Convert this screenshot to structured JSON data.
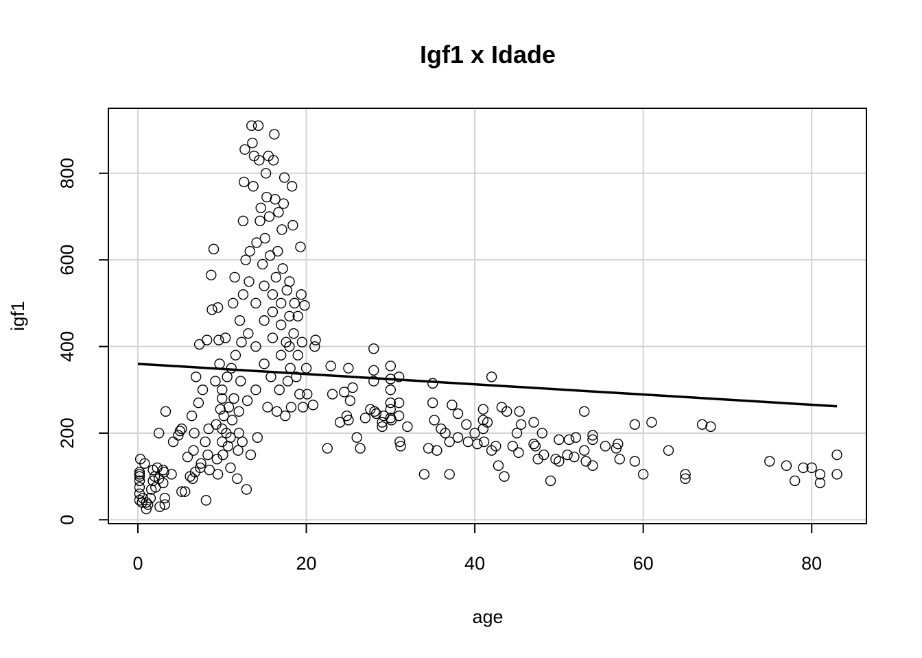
{
  "chart_data": {
    "type": "scatter",
    "title": "Igf1 x Idade",
    "xlabel": "age",
    "ylabel": "igf1",
    "xlim": [
      -3.5,
      86.5
    ],
    "ylim": [
      -9,
      950
    ],
    "xticks": [
      0,
      20,
      40,
      60,
      80
    ],
    "yticks": [
      0,
      200,
      400,
      600,
      800
    ],
    "grid": true,
    "series": [
      {
        "marker": "open-circle",
        "points": [
          [
            0.2,
            45
          ],
          [
            0.2,
            60
          ],
          [
            0.2,
            75
          ],
          [
            0.2,
            90
          ],
          [
            0.2,
            100
          ],
          [
            0.2,
            105
          ],
          [
            0.2,
            110
          ],
          [
            0.3,
            140
          ],
          [
            0.5,
            40
          ],
          [
            0.6,
            50
          ],
          [
            0.8,
            130
          ],
          [
            1,
            40
          ],
          [
            1,
            25
          ],
          [
            1.2,
            35
          ],
          [
            1.5,
            50
          ],
          [
            1.6,
            70
          ],
          [
            1.8,
            90
          ],
          [
            1.8,
            115
          ],
          [
            2,
            100
          ],
          [
            2.1,
            75
          ],
          [
            2.3,
            120
          ],
          [
            2.5,
            95
          ],
          [
            2.5,
            200
          ],
          [
            2.6,
            30
          ],
          [
            3,
            85
          ],
          [
            3,
            115
          ],
          [
            3.1,
            110
          ],
          [
            3.2,
            35
          ],
          [
            3.2,
            50
          ],
          [
            3.3,
            250
          ],
          [
            4,
            105
          ],
          [
            4.2,
            180
          ],
          [
            4.8,
            195
          ],
          [
            5,
            205
          ],
          [
            5.2,
            210
          ],
          [
            5.2,
            65
          ],
          [
            5.6,
            65
          ],
          [
            5.9,
            145
          ],
          [
            6.2,
            100
          ],
          [
            6.4,
            240
          ],
          [
            6.5,
            95
          ],
          [
            6.6,
            160
          ],
          [
            6.7,
            200
          ],
          [
            6.8,
            110
          ],
          [
            6.9,
            330
          ],
          [
            7.2,
            270
          ],
          [
            7.3,
            405
          ],
          [
            7.4,
            120
          ],
          [
            7.5,
            130
          ],
          [
            7.7,
            300
          ],
          [
            8,
            180
          ],
          [
            8.1,
            45
          ],
          [
            8.2,
            415
          ],
          [
            8.3,
            150
          ],
          [
            8.4,
            210
          ],
          [
            8.5,
            115
          ],
          [
            8.7,
            565
          ],
          [
            8.8,
            485
          ],
          [
            9,
            625
          ],
          [
            9.2,
            320
          ],
          [
            9.3,
            220
          ],
          [
            9.4,
            140
          ],
          [
            9.5,
            490
          ],
          [
            9.5,
            105
          ],
          [
            9.6,
            415
          ],
          [
            9.7,
            360
          ],
          [
            9.8,
            255
          ],
          [
            10,
            180
          ],
          [
            10,
            210
          ],
          [
            10,
            280
          ],
          [
            10,
            300
          ],
          [
            10.1,
            150
          ],
          [
            10.2,
            240
          ],
          [
            10.4,
            420
          ],
          [
            10.5,
            200
          ],
          [
            10.6,
            330
          ],
          [
            10.7,
            170
          ],
          [
            10.8,
            260
          ],
          [
            11,
            120
          ],
          [
            11,
            190
          ],
          [
            11.1,
            350
          ],
          [
            11.2,
            230
          ],
          [
            11.3,
            500
          ],
          [
            11.4,
            280
          ],
          [
            11.5,
            560
          ],
          [
            11.6,
            380
          ],
          [
            11.8,
            95
          ],
          [
            11.9,
            160
          ],
          [
            12,
            200
          ],
          [
            12,
            250
          ],
          [
            12.1,
            460
          ],
          [
            12.2,
            320
          ],
          [
            12.3,
            410
          ],
          [
            12.4,
            180
          ],
          [
            12.5,
            520
          ],
          [
            12.5,
            690
          ],
          [
            12.6,
            780
          ],
          [
            12.7,
            855
          ],
          [
            12.8,
            600
          ],
          [
            12.9,
            70
          ],
          [
            13,
            275
          ],
          [
            13.1,
            430
          ],
          [
            13.2,
            550
          ],
          [
            13.3,
            620
          ],
          [
            13.4,
            150
          ],
          [
            13.5,
            910
          ],
          [
            13.6,
            870
          ],
          [
            13.7,
            770
          ],
          [
            13.8,
            840
          ],
          [
            14,
            300
          ],
          [
            14,
            400
          ],
          [
            14,
            500
          ],
          [
            14.1,
            640
          ],
          [
            14.2,
            190
          ],
          [
            14.3,
            910
          ],
          [
            14.4,
            830
          ],
          [
            14.5,
            690
          ],
          [
            14.6,
            720
          ],
          [
            14.8,
            590
          ],
          [
            15,
            360
          ],
          [
            15,
            460
          ],
          [
            15,
            540
          ],
          [
            15.1,
            650
          ],
          [
            15.2,
            800
          ],
          [
            15.3,
            745
          ],
          [
            15.4,
            260
          ],
          [
            15.5,
            840
          ],
          [
            15.6,
            700
          ],
          [
            15.7,
            610
          ],
          [
            15.8,
            330
          ],
          [
            16,
            420
          ],
          [
            16,
            480
          ],
          [
            16,
            520
          ],
          [
            16.1,
            830
          ],
          [
            16.2,
            890
          ],
          [
            16.3,
            740
          ],
          [
            16.4,
            560
          ],
          [
            16.5,
            250
          ],
          [
            16.6,
            620
          ],
          [
            16.7,
            710
          ],
          [
            16.8,
            300
          ],
          [
            17,
            380
          ],
          [
            17,
            450
          ],
          [
            17,
            500
          ],
          [
            17.1,
            670
          ],
          [
            17.2,
            580
          ],
          [
            17.3,
            730
          ],
          [
            17.4,
            790
          ],
          [
            17.5,
            240
          ],
          [
            17.6,
            410
          ],
          [
            17.7,
            530
          ],
          [
            17.8,
            320
          ],
          [
            18,
            400
          ],
          [
            18,
            470
          ],
          [
            18,
            550
          ],
          [
            18.1,
            350
          ],
          [
            18.2,
            260
          ],
          [
            18.3,
            770
          ],
          [
            18.4,
            680
          ],
          [
            18.5,
            430
          ],
          [
            18.6,
            500
          ],
          [
            18.8,
            330
          ],
          [
            19,
            380
          ],
          [
            19,
            470
          ],
          [
            19.2,
            290
          ],
          [
            19.3,
            630
          ],
          [
            19.4,
            520
          ],
          [
            19.5,
            410
          ],
          [
            19.6,
            260
          ],
          [
            19.8,
            495
          ],
          [
            20,
            350
          ],
          [
            20.1,
            290
          ],
          [
            20.8,
            265
          ],
          [
            21,
            400
          ],
          [
            21.1,
            415
          ],
          [
            22.5,
            165
          ],
          [
            22.9,
            355
          ],
          [
            23.1,
            290
          ],
          [
            24,
            225
          ],
          [
            24.5,
            295
          ],
          [
            24.8,
            240
          ],
          [
            25,
            350
          ],
          [
            25,
            230
          ],
          [
            25.2,
            275
          ],
          [
            25.5,
            305
          ],
          [
            26,
            190
          ],
          [
            26.4,
            165
          ],
          [
            27,
            235
          ],
          [
            27.6,
            255
          ],
          [
            28,
            395
          ],
          [
            28,
            345
          ],
          [
            28,
            320
          ],
          [
            28.1,
            250
          ],
          [
            28.3,
            245
          ],
          [
            29,
            215
          ],
          [
            29,
            225
          ],
          [
            29.2,
            240
          ],
          [
            30,
            355
          ],
          [
            30,
            325
          ],
          [
            30,
            300
          ],
          [
            30,
            270
          ],
          [
            30,
            255
          ],
          [
            30,
            235
          ],
          [
            30.1,
            230
          ],
          [
            31,
            330
          ],
          [
            31,
            270
          ],
          [
            31,
            240
          ],
          [
            31.1,
            180
          ],
          [
            31.2,
            170
          ],
          [
            32,
            215
          ],
          [
            34,
            105
          ],
          [
            34.5,
            165
          ],
          [
            35,
            315
          ],
          [
            35,
            270
          ],
          [
            35.2,
            230
          ],
          [
            35.5,
            160
          ],
          [
            36,
            210
          ],
          [
            36.5,
            200
          ],
          [
            37,
            180
          ],
          [
            37,
            105
          ],
          [
            37.3,
            265
          ],
          [
            38,
            245
          ],
          [
            38,
            190
          ],
          [
            39,
            220
          ],
          [
            39.2,
            180
          ],
          [
            40,
            200
          ],
          [
            40.3,
            175
          ],
          [
            41,
            255
          ],
          [
            41,
            230
          ],
          [
            41,
            210
          ],
          [
            41.1,
            180
          ],
          [
            41.5,
            225
          ],
          [
            42,
            330
          ],
          [
            42,
            160
          ],
          [
            42.5,
            170
          ],
          [
            42.8,
            125
          ],
          [
            43.2,
            260
          ],
          [
            43.5,
            100
          ],
          [
            43.8,
            250
          ],
          [
            44.5,
            170
          ],
          [
            45,
            200
          ],
          [
            45.2,
            155
          ],
          [
            45.3,
            250
          ],
          [
            45.5,
            220
          ],
          [
            47,
            225
          ],
          [
            47,
            175
          ],
          [
            47.2,
            170
          ],
          [
            47.5,
            140
          ],
          [
            48,
            200
          ],
          [
            48.2,
            150
          ],
          [
            49,
            90
          ],
          [
            49.6,
            140
          ],
          [
            50,
            185
          ],
          [
            50,
            135
          ],
          [
            51,
            150
          ],
          [
            51.2,
            185
          ],
          [
            51.8,
            145
          ],
          [
            52,
            190
          ],
          [
            53,
            250
          ],
          [
            53,
            160
          ],
          [
            53.2,
            135
          ],
          [
            54,
            195
          ],
          [
            54,
            185
          ],
          [
            54,
            125
          ],
          [
            55.5,
            170
          ],
          [
            56.8,
            165
          ],
          [
            57,
            175
          ],
          [
            57.2,
            140
          ],
          [
            59,
            220
          ],
          [
            59,
            135
          ],
          [
            60,
            105
          ],
          [
            61,
            225
          ],
          [
            63,
            160
          ],
          [
            65,
            105
          ],
          [
            65,
            95
          ],
          [
            67,
            220
          ],
          [
            68,
            215
          ],
          [
            75,
            135
          ],
          [
            77,
            125
          ],
          [
            78,
            90
          ],
          [
            79,
            120
          ],
          [
            80,
            120
          ],
          [
            81,
            105
          ],
          [
            81,
            85
          ],
          [
            83,
            150
          ],
          [
            83,
            105
          ]
        ]
      }
    ],
    "trend_line": {
      "x": [
        0,
        83
      ],
      "y": [
        360,
        262
      ]
    }
  }
}
